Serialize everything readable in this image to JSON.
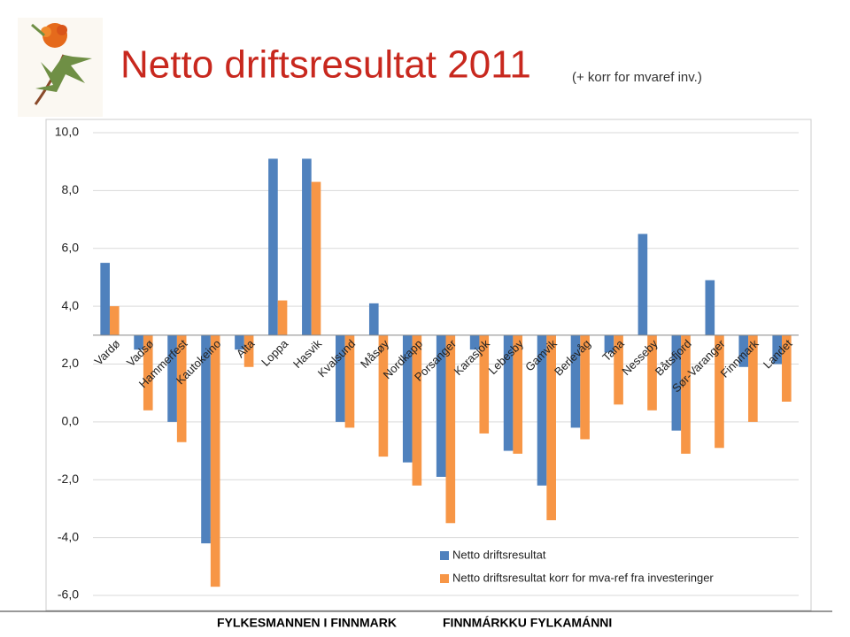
{
  "header": {
    "title": "Netto driftsresultat 2011",
    "subtitle": "(+ korr for mvaref inv.)"
  },
  "chart_data": {
    "type": "bar",
    "categories": [
      "Vardø",
      "Vadsø",
      "Hammerfest",
      "Kautokeino",
      "Alta",
      "Loppa",
      "Hasvik",
      "Kvalsund",
      "Måsøy",
      "Nordkapp",
      "Porsanger",
      "Karasjok",
      "Lebesby",
      "Gamvik",
      "Berlevåg",
      "Tana",
      "Nesseby",
      "Båtsfjord",
      "Sør-Varanger",
      "Finnmark",
      "Landet"
    ],
    "series": [
      {
        "name": "Netto driftsresultat",
        "color": "#4f81bd",
        "values": [
          5.5,
          2.5,
          0.0,
          -4.2,
          2.5,
          9.1,
          9.1,
          0.0,
          4.1,
          -1.4,
          -1.9,
          2.5,
          -1.0,
          -2.2,
          -0.2,
          2.4,
          6.5,
          -0.3,
          4.9,
          1.9,
          2.0
        ]
      },
      {
        "name": "Netto driftsresultat korr for mva-ref fra investeringer",
        "color": "#f79646",
        "values": [
          4.0,
          0.4,
          -0.7,
          -5.7,
          1.9,
          4.2,
          8.3,
          -0.2,
          -1.2,
          -2.2,
          -3.5,
          -0.4,
          -1.1,
          -3.4,
          -0.6,
          0.6,
          0.4,
          -1.1,
          -0.9,
          0.0,
          0.7
        ]
      }
    ],
    "baseline": 3,
    "ylim": [
      -6,
      10
    ],
    "yticks": [
      {
        "value": -6,
        "label": "-6,0"
      },
      {
        "value": -4,
        "label": "-4,0"
      },
      {
        "value": -2,
        "label": "-2,0"
      },
      {
        "value": 0,
        "label": "0,0"
      },
      {
        "value": 2,
        "label": "2,0"
      },
      {
        "value": 4,
        "label": "4,0"
      },
      {
        "value": 6,
        "label": "6,0"
      },
      {
        "value": 8,
        "label": "8,0"
      },
      {
        "value": 10,
        "label": "10,0"
      }
    ],
    "grid": true
  },
  "footer": {
    "left": "FYLKESMANNEN I FINNMARK",
    "right": "FINNMÁRKKU FYLKAMÁNNI"
  }
}
